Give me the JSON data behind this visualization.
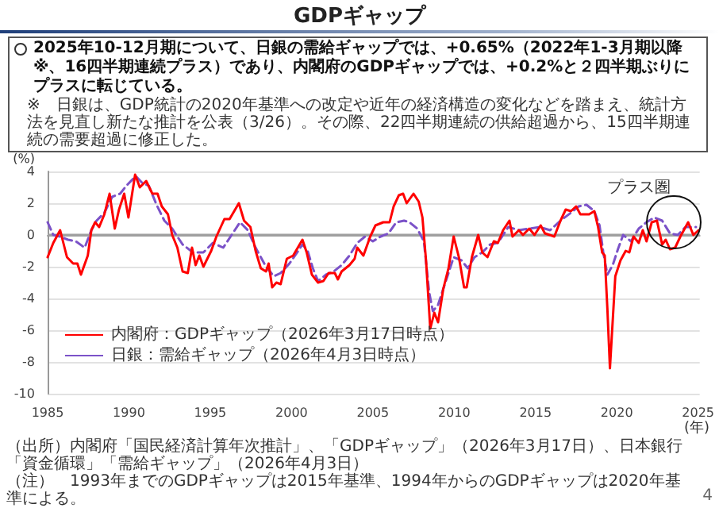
{
  "chart_data": {
    "type": "line",
    "title": "GDPギャップ",
    "subtitle": "2025年10-12月期について、日銀の需給ギャップでは、+0.65%（2022年1-3月期以降※、16四半期連続プラス）であり、内閣府のGDPギャップでは、+0.2%と２四半期ぶりにプラスに転じている。",
    "annotations": [
      "※　日銀は、GDP統計の2020年基準への改定や近年の経済構造の変化などを踏まえ、統計方法を見直し新たな推計を公表（3/26）。その際、22四半期連続の供給超過から、15四半期連続の需要超過に修正した。",
      {
        "text": "プラス圏",
        "x": 2023.5,
        "y": 0.8
      },
      "（出所）内閣府「国民経済計算年次推計」、「GDPギャップ」（2026年3月17日）、日本銀行「資金循環」「需給ギャップ」（2026年4月3日）",
      "（注）　1993年までのGDPギャップは2015年基準、1994年からのGDPギャップは2020年基準による。",
      "4"
    ],
    "ylabel": "(%)",
    "xlabel": "(年)",
    "series": [
      {
        "name": "内閣府：GDPギャップ（2026年3月17日時点）",
        "color": "#ff0000",
        "line_style": "solid",
        "x": [
          1985.0,
          1985.35,
          1985.77,
          1986.19,
          1986.57,
          1986.83,
          1987.05,
          1987.47,
          1987.69,
          1987.92,
          1988.17,
          1988.49,
          1988.81,
          1989.13,
          1989.39,
          1989.71,
          1989.97,
          1990.38,
          1990.67,
          1991.06,
          1991.44,
          1991.76,
          1992.02,
          1992.4,
          1992.66,
          1992.98,
          1993.3,
          1993.62,
          1993.88,
          1994.1,
          1994.33,
          1994.58,
          1995.06,
          1995.38,
          1995.87,
          1996.19,
          1996.76,
          1997.08,
          1997.47,
          1997.79,
          1998.11,
          1998.43,
          1998.59,
          1998.81,
          1999.07,
          1999.33,
          1999.71,
          2000.1,
          2000.67,
          2000.93,
          2001.25,
          2001.63,
          2001.96,
          2002.28,
          2002.66,
          2002.85,
          2003.08,
          2003.56,
          2003.88,
          2004.04,
          2004.42,
          2004.84,
          2005.16,
          2005.64,
          2006.03,
          2006.28,
          2006.6,
          2006.86,
          2007.08,
          2007.5,
          2007.82,
          2008.05,
          2008.27,
          2008.53,
          2008.78,
          2009.01,
          2009.33,
          2009.65,
          2009.97,
          2010.29,
          2010.61,
          2010.77,
          2011.09,
          2011.48,
          2011.73,
          2012.05,
          2012.44,
          2012.69,
          2013.01,
          2013.4,
          2013.59,
          2013.98,
          2014.23,
          2014.62,
          2014.94,
          2015.32,
          2015.58,
          2016.16,
          2016.54,
          2016.86,
          2017.18,
          2017.5,
          2017.76,
          2018.3,
          2018.62,
          2018.85,
          2019.1,
          2019.26,
          2019.42,
          2019.58,
          2019.91,
          2020.23,
          2020.55,
          2020.77,
          2021.03,
          2021.35,
          2021.6,
          2021.83,
          2022.15,
          2022.47,
          2022.79,
          2023.01,
          2023.27,
          2023.59,
          2023.91,
          2024.39,
          2024.71,
          2025.03
        ],
        "values": [
          -1.4,
          -0.5,
          0.3,
          -1.4,
          -1.8,
          -1.8,
          -2.5,
          -1.3,
          0.3,
          0.8,
          0.5,
          1.3,
          2.6,
          0.4,
          1.6,
          2.6,
          1.1,
          3.8,
          3.0,
          3.4,
          2.6,
          2.6,
          1.8,
          1.3,
          0,
          -0.8,
          -2.3,
          -2.4,
          -0.8,
          -1.9,
          -1.3,
          -2.0,
          -1.0,
          -0.1,
          1.0,
          1.0,
          2.0,
          0.9,
          0.5,
          -1.0,
          -2.1,
          -2.3,
          -1.8,
          -3.3,
          -3.0,
          -3.1,
          -1.5,
          -1.3,
          -0.3,
          -1.1,
          -2.5,
          -3.0,
          -2.9,
          -2.4,
          -2.4,
          -2.8,
          -2.3,
          -1.9,
          -1.5,
          -0.8,
          -1.3,
          -0.1,
          0.6,
          0.8,
          0.8,
          1.8,
          2.5,
          2.6,
          2.0,
          2.6,
          2.1,
          1.1,
          -1.6,
          -5.9,
          -4.9,
          -5.5,
          -3.4,
          -2.1,
          -0.1,
          -1.4,
          -3.3,
          -3.3,
          -1.4,
          0,
          -1.1,
          -1.4,
          -0.4,
          -0.5,
          0.3,
          0.9,
          -0.1,
          0.3,
          0,
          0.4,
          0,
          0.6,
          0.1,
          -0.1,
          0.9,
          1.6,
          1.5,
          1.8,
          1.3,
          1.3,
          1.5,
          0.5,
          -1.1,
          -1.3,
          -4.6,
          -8.4,
          -2.6,
          -1.6,
          -1.0,
          -1.1,
          -0.1,
          -0.5,
          0.3,
          -0.4,
          0.8,
          0.9,
          -0.6,
          -0.3,
          -0.9,
          -0.8,
          -0.1,
          0.8,
          0,
          0.3
        ]
      },
      {
        "name": "日銀：需給ギャップ（2026年4月3日時点）",
        "color": "#7b52c8",
        "line_style": "dashed",
        "x": [
          1985.0,
          1985.35,
          1985.77,
          1986.25,
          1986.73,
          1987.28,
          1987.69,
          1988.01,
          1988.49,
          1988.97,
          1989.46,
          1989.84,
          1990.42,
          1990.8,
          1991.22,
          1991.7,
          1992.18,
          1992.66,
          1993.3,
          1993.94,
          1994.58,
          1995.16,
          1995.8,
          1996.25,
          1996.83,
          1997.31,
          1997.79,
          1998.43,
          1998.91,
          1999.33,
          1999.87,
          2000.35,
          2000.67,
          2000.99,
          2001.31,
          2001.63,
          2002.12,
          2002.6,
          2003.08,
          2003.56,
          2004.04,
          2004.52,
          2005.0,
          2005.48,
          2005.96,
          2006.44,
          2006.92,
          2007.25,
          2007.73,
          2008.14,
          2008.46,
          2008.69,
          2009.01,
          2009.49,
          2009.97,
          2010.45,
          2010.84,
          2011.25,
          2011.73,
          2012.21,
          2012.69,
          2013.33,
          2013.98,
          2014.62,
          2015.26,
          2015.9,
          2016.54,
          2017.18,
          2017.66,
          2018.14,
          2018.62,
          2018.94,
          2019.17,
          2019.42,
          2019.75,
          2020.07,
          2020.39,
          2020.87,
          2021.35,
          2021.83,
          2022.31,
          2022.79,
          2023.27,
          2023.75,
          2024.23,
          2024.87
        ],
        "values": [
          0.8,
          0,
          -0.1,
          -0.3,
          -0.4,
          -0.8,
          0.3,
          0.9,
          1.4,
          2.4,
          2.6,
          3.1,
          3.7,
          3.3,
          3.1,
          1.9,
          0.9,
          0.4,
          -0.6,
          -1.1,
          -1.1,
          -0.5,
          -0.8,
          -0.1,
          0.8,
          0.3,
          -0.8,
          -2.0,
          -2.6,
          -2.4,
          -1.8,
          -1.1,
          -0.6,
          -1.0,
          -2.1,
          -2.9,
          -2.5,
          -2.3,
          -1.9,
          -1.3,
          -0.5,
          -0.1,
          -0.4,
          -0.1,
          0.1,
          0.8,
          0.9,
          0.8,
          0.4,
          -0.4,
          -3.6,
          -4.8,
          -4.4,
          -2.9,
          -1.4,
          -1.6,
          -2.1,
          -1.4,
          -1.1,
          -0.6,
          -0.5,
          0.5,
          0.3,
          0.4,
          0.5,
          0.3,
          0.9,
          1.4,
          1.8,
          1.9,
          1.5,
          0.6,
          -1.1,
          -2.5,
          -1.9,
          -0.9,
          0,
          -0.4,
          0.4,
          0.8,
          1.1,
          0.9,
          0.1,
          0,
          0.5,
          0.5
        ]
      }
    ],
    "xlim": [
      1985,
      2025.1
    ],
    "xticks": [
      1985,
      1990,
      1995,
      2000,
      2005,
      2010,
      2015,
      2020,
      2025
    ],
    "ylim": [
      -10,
      4
    ],
    "yticks": [
      -10,
      -8,
      -6,
      -4,
      -2,
      0,
      2,
      4
    ],
    "ref_lines": [
      {
        "axis": "y",
        "value": 0,
        "color": "#a0a0a0"
      }
    ],
    "grid": "y",
    "legend": "bottom",
    "marker": "none"
  }
}
